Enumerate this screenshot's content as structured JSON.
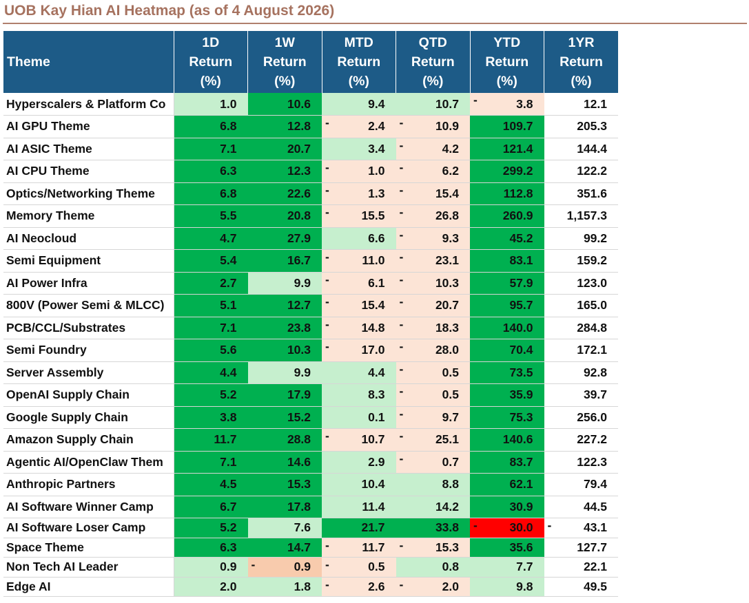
{
  "title": "UOB Kay Hian AI Heatmap (as of 4 August 2026)",
  "colors": {
    "header_bg": "#1d5b87",
    "strong_positive": "#00b050",
    "mild_positive": "#c6efce",
    "mild_negative": "#fce4d6",
    "moderate_negative": "#f8cbad",
    "strong_negative": "#ff0000",
    "title": "#a6725f"
  },
  "header": {
    "theme": "Theme",
    "columns": [
      {
        "line1": "1D",
        "line2": "Return",
        "line3": "(%)"
      },
      {
        "line1": "1W",
        "line2": "Return",
        "line3": "(%)"
      },
      {
        "line1": "MTD",
        "line2": "Return",
        "line3": "(%)"
      },
      {
        "line1": "QTD",
        "line2": "Return",
        "line3": "(%)"
      },
      {
        "line1": "YTD",
        "line2": "Return",
        "line3": "(%)"
      },
      {
        "line1": "1YR",
        "line2": "Return",
        "line3": "(%)"
      }
    ]
  },
  "rows": [
    {
      "theme": "Hyperscalers & Platform Co",
      "cells": [
        {
          "v": "1.0",
          "neg": false,
          "fill": "light"
        },
        {
          "v": "10.6",
          "neg": false,
          "fill": "strong"
        },
        {
          "v": "9.4",
          "neg": false,
          "fill": "light"
        },
        {
          "v": "10.7",
          "neg": false,
          "fill": "light"
        },
        {
          "v": "3.8",
          "neg": true,
          "fill": "pink"
        },
        {
          "v": "12.1",
          "neg": false,
          "fill": "none"
        }
      ]
    },
    {
      "theme": "AI GPU Theme",
      "cells": [
        {
          "v": "6.8",
          "neg": false,
          "fill": "strong"
        },
        {
          "v": "12.8",
          "neg": false,
          "fill": "strong"
        },
        {
          "v": "2.4",
          "neg": true,
          "fill": "pink"
        },
        {
          "v": "10.9",
          "neg": true,
          "fill": "pink"
        },
        {
          "v": "109.7",
          "neg": false,
          "fill": "strong"
        },
        {
          "v": "205.3",
          "neg": false,
          "fill": "none"
        }
      ]
    },
    {
      "theme": "AI ASIC Theme",
      "cells": [
        {
          "v": "7.1",
          "neg": false,
          "fill": "strong"
        },
        {
          "v": "20.7",
          "neg": false,
          "fill": "strong"
        },
        {
          "v": "3.4",
          "neg": false,
          "fill": "light"
        },
        {
          "v": "4.2",
          "neg": true,
          "fill": "pink"
        },
        {
          "v": "121.4",
          "neg": false,
          "fill": "strong"
        },
        {
          "v": "144.4",
          "neg": false,
          "fill": "none"
        }
      ]
    },
    {
      "theme": "AI CPU Theme",
      "cells": [
        {
          "v": "6.3",
          "neg": false,
          "fill": "strong"
        },
        {
          "v": "12.3",
          "neg": false,
          "fill": "strong"
        },
        {
          "v": "1.0",
          "neg": true,
          "fill": "pink"
        },
        {
          "v": "6.2",
          "neg": true,
          "fill": "pink"
        },
        {
          "v": "299.2",
          "neg": false,
          "fill": "strong"
        },
        {
          "v": "122.2",
          "neg": false,
          "fill": "none"
        }
      ]
    },
    {
      "theme": "Optics/Networking Theme",
      "cells": [
        {
          "v": "6.8",
          "neg": false,
          "fill": "strong"
        },
        {
          "v": "22.6",
          "neg": false,
          "fill": "strong"
        },
        {
          "v": "1.3",
          "neg": true,
          "fill": "pink"
        },
        {
          "v": "15.4",
          "neg": true,
          "fill": "pink"
        },
        {
          "v": "112.8",
          "neg": false,
          "fill": "strong"
        },
        {
          "v": "351.6",
          "neg": false,
          "fill": "none"
        }
      ]
    },
    {
      "theme": "Memory Theme",
      "cells": [
        {
          "v": "5.5",
          "neg": false,
          "fill": "strong"
        },
        {
          "v": "20.8",
          "neg": false,
          "fill": "strong"
        },
        {
          "v": "15.5",
          "neg": true,
          "fill": "pink"
        },
        {
          "v": "26.8",
          "neg": true,
          "fill": "pink"
        },
        {
          "v": "260.9",
          "neg": false,
          "fill": "strong"
        },
        {
          "v": "1,157.3",
          "neg": false,
          "fill": "none"
        }
      ]
    },
    {
      "theme": "AI Neocloud",
      "cells": [
        {
          "v": "4.7",
          "neg": false,
          "fill": "strong"
        },
        {
          "v": "27.9",
          "neg": false,
          "fill": "strong"
        },
        {
          "v": "6.6",
          "neg": false,
          "fill": "light"
        },
        {
          "v": "9.3",
          "neg": true,
          "fill": "pink"
        },
        {
          "v": "45.2",
          "neg": false,
          "fill": "strong"
        },
        {
          "v": "99.2",
          "neg": false,
          "fill": "none"
        }
      ]
    },
    {
      "theme": "Semi Equipment",
      "cells": [
        {
          "v": "5.4",
          "neg": false,
          "fill": "strong"
        },
        {
          "v": "16.7",
          "neg": false,
          "fill": "strong"
        },
        {
          "v": "11.0",
          "neg": true,
          "fill": "pink"
        },
        {
          "v": "23.1",
          "neg": true,
          "fill": "pink"
        },
        {
          "v": "83.1",
          "neg": false,
          "fill": "strong"
        },
        {
          "v": "159.2",
          "neg": false,
          "fill": "none"
        }
      ]
    },
    {
      "theme": "AI Power Infra",
      "cells": [
        {
          "v": "2.7",
          "neg": false,
          "fill": "strong"
        },
        {
          "v": "9.9",
          "neg": false,
          "fill": "light"
        },
        {
          "v": "6.1",
          "neg": true,
          "fill": "pink"
        },
        {
          "v": "10.3",
          "neg": true,
          "fill": "pink"
        },
        {
          "v": "57.9",
          "neg": false,
          "fill": "strong"
        },
        {
          "v": "123.0",
          "neg": false,
          "fill": "none"
        }
      ]
    },
    {
      "theme": "800V (Power Semi & MLCC)",
      "cells": [
        {
          "v": "5.1",
          "neg": false,
          "fill": "strong"
        },
        {
          "v": "12.7",
          "neg": false,
          "fill": "strong"
        },
        {
          "v": "15.4",
          "neg": true,
          "fill": "pink"
        },
        {
          "v": "20.7",
          "neg": true,
          "fill": "pink"
        },
        {
          "v": "95.7",
          "neg": false,
          "fill": "strong"
        },
        {
          "v": "165.0",
          "neg": false,
          "fill": "none"
        }
      ]
    },
    {
      "theme": "PCB/CCL/Substrates",
      "cells": [
        {
          "v": "7.1",
          "neg": false,
          "fill": "strong"
        },
        {
          "v": "23.8",
          "neg": false,
          "fill": "strong"
        },
        {
          "v": "14.8",
          "neg": true,
          "fill": "pink"
        },
        {
          "v": "18.3",
          "neg": true,
          "fill": "pink"
        },
        {
          "v": "140.0",
          "neg": false,
          "fill": "strong"
        },
        {
          "v": "284.8",
          "neg": false,
          "fill": "none"
        }
      ]
    },
    {
      "theme": "Semi Foundry",
      "cells": [
        {
          "v": "5.6",
          "neg": false,
          "fill": "strong"
        },
        {
          "v": "10.3",
          "neg": false,
          "fill": "strong"
        },
        {
          "v": "17.0",
          "neg": true,
          "fill": "pink"
        },
        {
          "v": "28.0",
          "neg": true,
          "fill": "pink"
        },
        {
          "v": "70.4",
          "neg": false,
          "fill": "strong"
        },
        {
          "v": "172.1",
          "neg": false,
          "fill": "none"
        }
      ]
    },
    {
      "theme": "Server Assembly",
      "cells": [
        {
          "v": "4.4",
          "neg": false,
          "fill": "strong"
        },
        {
          "v": "9.9",
          "neg": false,
          "fill": "light"
        },
        {
          "v": "4.4",
          "neg": false,
          "fill": "light"
        },
        {
          "v": "0.5",
          "neg": true,
          "fill": "pink"
        },
        {
          "v": "73.5",
          "neg": false,
          "fill": "strong"
        },
        {
          "v": "92.8",
          "neg": false,
          "fill": "none"
        }
      ]
    },
    {
      "theme": "OpenAI Supply Chain",
      "cells": [
        {
          "v": "5.2",
          "neg": false,
          "fill": "strong"
        },
        {
          "v": "17.9",
          "neg": false,
          "fill": "strong"
        },
        {
          "v": "8.3",
          "neg": false,
          "fill": "light"
        },
        {
          "v": "0.5",
          "neg": true,
          "fill": "pink"
        },
        {
          "v": "35.9",
          "neg": false,
          "fill": "strong"
        },
        {
          "v": "39.7",
          "neg": false,
          "fill": "none"
        }
      ]
    },
    {
      "theme": "Google Supply Chain",
      "cells": [
        {
          "v": "3.8",
          "neg": false,
          "fill": "strong"
        },
        {
          "v": "15.2",
          "neg": false,
          "fill": "strong"
        },
        {
          "v": "0.1",
          "neg": false,
          "fill": "light"
        },
        {
          "v": "9.7",
          "neg": true,
          "fill": "pink"
        },
        {
          "v": "75.3",
          "neg": false,
          "fill": "strong"
        },
        {
          "v": "256.0",
          "neg": false,
          "fill": "none"
        }
      ]
    },
    {
      "theme": "Amazon Supply Chain",
      "cells": [
        {
          "v": "11.7",
          "neg": false,
          "fill": "strong"
        },
        {
          "v": "28.8",
          "neg": false,
          "fill": "strong"
        },
        {
          "v": "10.7",
          "neg": true,
          "fill": "pink"
        },
        {
          "v": "25.1",
          "neg": true,
          "fill": "pink"
        },
        {
          "v": "140.6",
          "neg": false,
          "fill": "strong"
        },
        {
          "v": "227.2",
          "neg": false,
          "fill": "none"
        }
      ]
    },
    {
      "theme": "Agentic AI/OpenClaw Them",
      "cells": [
        {
          "v": "7.1",
          "neg": false,
          "fill": "strong"
        },
        {
          "v": "14.6",
          "neg": false,
          "fill": "strong"
        },
        {
          "v": "2.9",
          "neg": false,
          "fill": "light"
        },
        {
          "v": "0.7",
          "neg": true,
          "fill": "pink"
        },
        {
          "v": "83.7",
          "neg": false,
          "fill": "strong"
        },
        {
          "v": "122.3",
          "neg": false,
          "fill": "none"
        }
      ]
    },
    {
      "theme": "Anthropic Partners",
      "cells": [
        {
          "v": "4.5",
          "neg": false,
          "fill": "strong"
        },
        {
          "v": "15.3",
          "neg": false,
          "fill": "strong"
        },
        {
          "v": "10.4",
          "neg": false,
          "fill": "light"
        },
        {
          "v": "8.8",
          "neg": false,
          "fill": "light"
        },
        {
          "v": "62.1",
          "neg": false,
          "fill": "strong"
        },
        {
          "v": "79.4",
          "neg": false,
          "fill": "none"
        }
      ]
    },
    {
      "theme": "AI Software Winner Camp",
      "cells": [
        {
          "v": "6.7",
          "neg": false,
          "fill": "strong"
        },
        {
          "v": "17.8",
          "neg": false,
          "fill": "strong"
        },
        {
          "v": "11.4",
          "neg": false,
          "fill": "light"
        },
        {
          "v": "14.2",
          "neg": false,
          "fill": "light"
        },
        {
          "v": "30.9",
          "neg": false,
          "fill": "strong"
        },
        {
          "v": "44.5",
          "neg": false,
          "fill": "none"
        }
      ]
    },
    {
      "theme": "AI Software Loser Camp",
      "short": true,
      "cells": [
        {
          "v": "5.2",
          "neg": false,
          "fill": "strong"
        },
        {
          "v": "7.6",
          "neg": false,
          "fill": "light"
        },
        {
          "v": "21.7",
          "neg": false,
          "fill": "strong"
        },
        {
          "v": "33.8",
          "neg": false,
          "fill": "strong"
        },
        {
          "v": "30.0",
          "neg": true,
          "fill": "red"
        },
        {
          "v": "43.1",
          "neg": true,
          "fill": "none"
        }
      ]
    },
    {
      "theme": "Space Theme",
      "short": true,
      "cells": [
        {
          "v": "6.3",
          "neg": false,
          "fill": "strong"
        },
        {
          "v": "14.7",
          "neg": false,
          "fill": "strong"
        },
        {
          "v": "11.7",
          "neg": true,
          "fill": "pink"
        },
        {
          "v": "15.3",
          "neg": true,
          "fill": "pink"
        },
        {
          "v": "35.6",
          "neg": false,
          "fill": "strong"
        },
        {
          "v": "127.7",
          "neg": false,
          "fill": "none"
        }
      ]
    },
    {
      "theme": "Non Tech AI Leader",
      "short": true,
      "cells": [
        {
          "v": "0.9",
          "neg": false,
          "fill": "light"
        },
        {
          "v": "0.9",
          "neg": true,
          "fill": "salmon"
        },
        {
          "v": "0.5",
          "neg": true,
          "fill": "pink"
        },
        {
          "v": "0.8",
          "neg": false,
          "fill": "light"
        },
        {
          "v": "7.7",
          "neg": false,
          "fill": "light"
        },
        {
          "v": "22.1",
          "neg": false,
          "fill": "none"
        }
      ]
    },
    {
      "theme": "Edge AI",
      "short": true,
      "cells": [
        {
          "v": "2.0",
          "neg": false,
          "fill": "light"
        },
        {
          "v": "1.8",
          "neg": false,
          "fill": "light"
        },
        {
          "v": "2.6",
          "neg": true,
          "fill": "pink"
        },
        {
          "v": "2.0",
          "neg": true,
          "fill": "pink"
        },
        {
          "v": "9.8",
          "neg": false,
          "fill": "light"
        },
        {
          "v": "49.5",
          "neg": false,
          "fill": "none"
        }
      ]
    }
  ]
}
